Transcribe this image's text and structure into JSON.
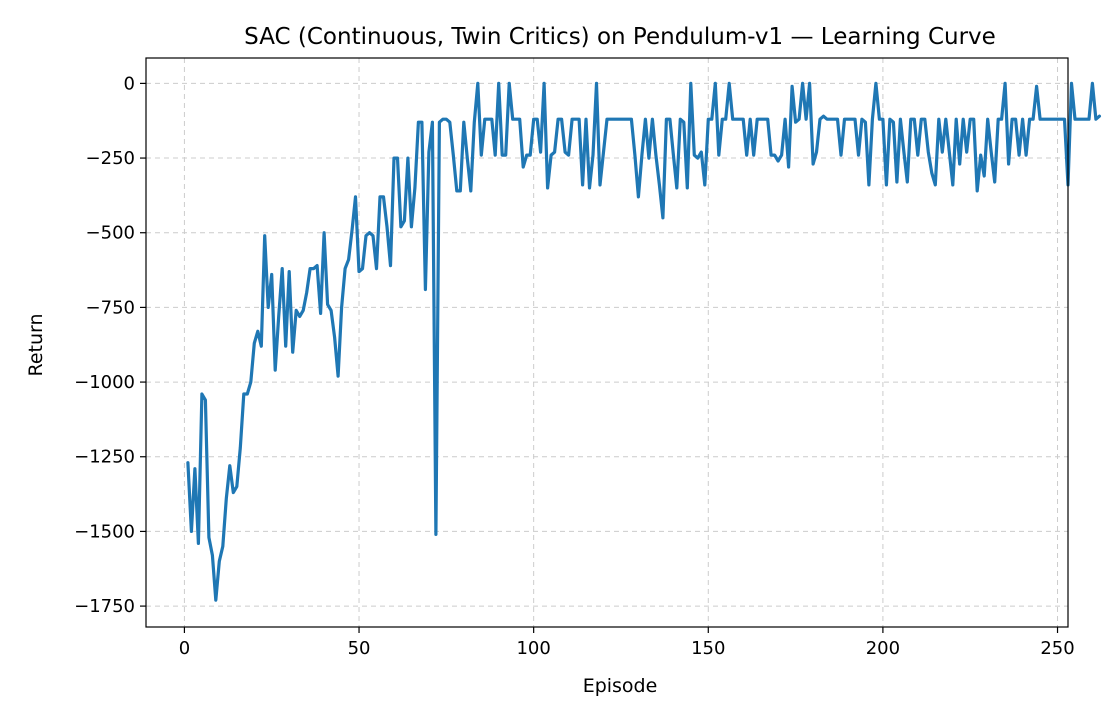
{
  "chart_data": {
    "type": "line",
    "title": "SAC (Continuous, Twin Critics) on Pendulum-v1 — Learning Curve",
    "xlabel": "Episode",
    "ylabel": "Return",
    "xlim": [
      -11,
      253
    ],
    "ylim": [
      -1820,
      85
    ],
    "xticks": [
      0,
      50,
      100,
      150,
      200,
      250
    ],
    "xtick_labels": [
      "0",
      "50",
      "100",
      "150",
      "200",
      "250"
    ],
    "yticks": [
      0,
      -250,
      -500,
      -750,
      -1000,
      -1250,
      -1500,
      -1750
    ],
    "ytick_labels": [
      "0",
      "−250",
      "−500",
      "−750",
      "−1000",
      "−1250",
      "−1500",
      "−1750"
    ],
    "grid": true,
    "legend": false,
    "colors": {
      "line": "#1f77b4",
      "grid": "#cccccc",
      "axes": "#000000"
    },
    "series": [
      {
        "x_start": 1,
        "x_step": 1,
        "values": [
          -1270,
          -1500,
          -1290,
          -1540,
          -1040,
          -1060,
          -1520,
          -1580,
          -1730,
          -1600,
          -1550,
          -1390,
          -1280,
          -1370,
          -1350,
          -1220,
          -1040,
          -1040,
          -1000,
          -870,
          -830,
          -880,
          -510,
          -750,
          -640,
          -960,
          -780,
          -620,
          -880,
          -630,
          -900,
          -760,
          -780,
          -760,
          -700,
          -620,
          -620,
          -610,
          -770,
          -500,
          -740,
          -760,
          -850,
          -980,
          -750,
          -620,
          -590,
          -490,
          -380,
          -630,
          -620,
          -510,
          -500,
          -510,
          -620,
          -380,
          -380,
          -480,
          -610,
          -250,
          -250,
          -480,
          -460,
          -250,
          -480,
          -350,
          -130,
          -130,
          -690,
          -230,
          -130,
          -1510,
          -130,
          -120,
          -120,
          -130,
          -240,
          -360,
          -360,
          -130,
          -250,
          -360,
          -130,
          0,
          -240,
          -120,
          -120,
          -120,
          -240,
          0,
          -240,
          -240,
          0,
          -120,
          -120,
          -120,
          -280,
          -240,
          -240,
          -120,
          -120,
          -230,
          0,
          -350,
          -240,
          -230,
          -120,
          -120,
          -230,
          -240,
          -120,
          -120,
          -120,
          -340,
          -120,
          -350,
          -240,
          0,
          -340,
          -230,
          -120,
          -120,
          -120,
          -120,
          -120,
          -120,
          -120,
          -120,
          -240,
          -380,
          -240,
          -120,
          -250,
          -120,
          -240,
          -340,
          -450,
          -120,
          -120,
          -240,
          -350,
          -120,
          -130,
          -350,
          0,
          -240,
          -250,
          -230,
          -340,
          -120,
          -120,
          0,
          -240,
          -120,
          -120,
          0,
          -120,
          -120,
          -120,
          -120,
          -240,
          -120,
          -240,
          -120,
          -120,
          -120,
          -120,
          -240,
          -240,
          -260,
          -240,
          -120,
          -280,
          -10,
          -130,
          -120,
          0,
          -120,
          0,
          -270,
          -230,
          -120,
          -110,
          -120,
          -120,
          -120,
          -120,
          -240,
          -120,
          -120,
          -120,
          -120,
          -240,
          -120,
          -130,
          -340,
          -120,
          0,
          -120,
          -120,
          -340,
          -120,
          -130,
          -330,
          -120,
          -230,
          -330,
          -120,
          -120,
          -240,
          -120,
          -120,
          -230,
          -300,
          -340,
          -120,
          -230,
          -120,
          -230,
          -340,
          -120,
          -270,
          -120,
          -230,
          -120,
          -120,
          -360,
          -240,
          -310,
          -120,
          -230,
          -330,
          -120,
          -120,
          0,
          -270,
          -120,
          -120,
          -240,
          -120,
          -240,
          -120,
          -120,
          -10,
          -120,
          -120,
          -120,
          -120,
          -120,
          -120,
          -120,
          -120,
          -340,
          0,
          -120,
          -120,
          -120,
          -120,
          -120,
          0,
          -120,
          -110
        ]
      }
    ]
  }
}
